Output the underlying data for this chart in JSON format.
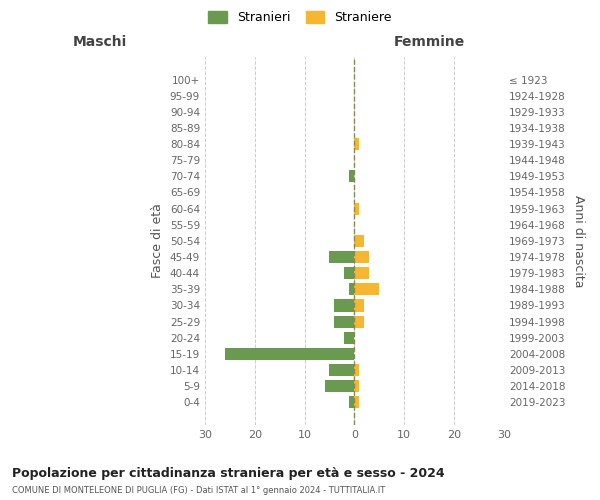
{
  "age_groups": [
    "100+",
    "95-99",
    "90-94",
    "85-89",
    "80-84",
    "75-79",
    "70-74",
    "65-69",
    "60-64",
    "55-59",
    "50-54",
    "45-49",
    "40-44",
    "35-39",
    "30-34",
    "25-29",
    "20-24",
    "15-19",
    "10-14",
    "5-9",
    "0-4"
  ],
  "birth_years": [
    "≤ 1923",
    "1924-1928",
    "1929-1933",
    "1934-1938",
    "1939-1943",
    "1944-1948",
    "1949-1953",
    "1954-1958",
    "1959-1963",
    "1964-1968",
    "1969-1973",
    "1974-1978",
    "1979-1983",
    "1984-1988",
    "1989-1993",
    "1994-1998",
    "1999-2003",
    "2004-2008",
    "2009-2013",
    "2014-2018",
    "2019-2023"
  ],
  "maschi_stranieri": [
    0,
    0,
    0,
    0,
    0,
    0,
    1,
    0,
    0,
    0,
    0,
    5,
    2,
    1,
    4,
    4,
    2,
    26,
    5,
    6,
    1
  ],
  "femmine_straniere": [
    0,
    0,
    0,
    0,
    1,
    0,
    0,
    0,
    1,
    0,
    2,
    3,
    3,
    5,
    2,
    2,
    0,
    0,
    1,
    1,
    1
  ],
  "color_maschi": "#6a9a50",
  "color_femmine": "#f5b731",
  "title": "Popolazione per cittadinanza straniera per età e sesso - 2024",
  "subtitle": "COMUNE DI MONTELEONE DI PUGLIA (FG) - Dati ISTAT al 1° gennaio 2024 - TUTTITALIA.IT",
  "xlabel_left": "Maschi",
  "xlabel_right": "Femmine",
  "ylabel_left": "Fasce di età",
  "ylabel_right": "Anni di nascita",
  "legend_maschi": "Stranieri",
  "legend_femmine": "Straniere",
  "xlim": 30,
  "background_color": "#ffffff",
  "grid_color": "#cccccc",
  "bar_height": 0.75
}
